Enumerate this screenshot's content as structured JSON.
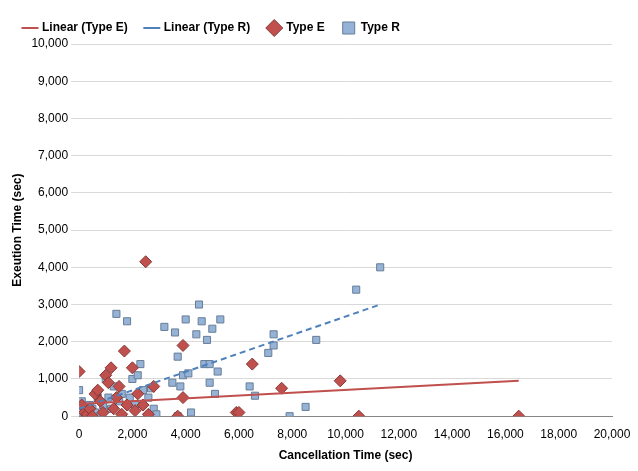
{
  "chart_data": {
    "type": "scatter",
    "x_label": "Cancellation Time (sec)",
    "y_label": "Exeution Time (sec)",
    "xlim": [
      0,
      20000
    ],
    "ylim": [
      0,
      10000
    ],
    "xticks": [
      0,
      {
        "value": 2000,
        "label": "2,000"
      },
      {
        "value": 4000,
        "label": "4,000"
      },
      {
        "value": 6000,
        "label": "6,000"
      },
      {
        "value": 8000,
        "label": "8,000"
      },
      {
        "value": 10000,
        "label": "10,000"
      },
      {
        "value": 12000,
        "label": "12,000"
      },
      {
        "value": 14000,
        "label": "14,000"
      },
      {
        "value": 16000,
        "label": "16,000"
      },
      {
        "value": 18000,
        "label": "18,000"
      },
      {
        "value": 20000,
        "label": "20,000"
      }
    ],
    "yticks": [
      0,
      {
        "value": 1000,
        "label": "1,000"
      },
      {
        "value": 2000,
        "label": "2,000"
      },
      {
        "value": 3000,
        "label": "3,000"
      },
      {
        "value": 4000,
        "label": "4,000"
      },
      {
        "value": 5000,
        "label": "5,000"
      },
      {
        "value": 6000,
        "label": "6,000"
      },
      {
        "value": 7000,
        "label": "7,000"
      },
      {
        "value": 8000,
        "label": "8,000"
      },
      {
        "value": 9000,
        "label": "9,000"
      },
      {
        "value": 10000,
        "label": "10,000"
      }
    ],
    "grid": "y",
    "legend": "top",
    "series": [
      {
        "name": "Type E",
        "type": "scatter",
        "marker": "diamond",
        "color": "#c0504d",
        "x": [
          0,
          100,
          200,
          300,
          400,
          500,
          600,
          700,
          800,
          900,
          1000,
          1100,
          1200,
          1300,
          1400,
          1500,
          1600,
          1700,
          1800,
          2000,
          2100,
          2200,
          2400,
          2500,
          2600,
          2800,
          3700,
          3900,
          3900,
          5900,
          6000,
          6500,
          7600,
          9800,
          10500,
          16500
        ],
        "values": [
          1200,
          300,
          100,
          50,
          200,
          0,
          600,
          700,
          400,
          100,
          1100,
          900,
          1300,
          200,
          500,
          800,
          50,
          1750,
          300,
          1300,
          150,
          600,
          300,
          4150,
          50,
          800,
          0,
          500,
          1900,
          100,
          100,
          1400,
          750,
          950,
          0,
          0
        ]
      },
      {
        "name": "Type R",
        "type": "scatter",
        "marker": "square",
        "color": "#95b3d7",
        "x": [
          0,
          50,
          100,
          200,
          300,
          400,
          500,
          600,
          700,
          800,
          900,
          1000,
          1100,
          1200,
          1300,
          1400,
          1500,
          1600,
          1800,
          1900,
          2000,
          2100,
          2200,
          2300,
          2400,
          2600,
          2700,
          2800,
          2900,
          3200,
          3500,
          3600,
          3700,
          3700,
          3800,
          3900,
          4000,
          4100,
          4200,
          4400,
          4500,
          4600,
          4700,
          4800,
          4900,
          4900,
          5000,
          5100,
          5200,
          5300,
          6400,
          6600,
          7100,
          7300,
          7300,
          7900,
          8500,
          8900,
          10400,
          11300
        ],
        "values": [
          700,
          100,
          400,
          200,
          0,
          300,
          200,
          100,
          500,
          0,
          300,
          1000,
          500,
          200,
          800,
          2750,
          400,
          600,
          2550,
          500,
          1000,
          300,
          1100,
          1400,
          700,
          500,
          750,
          200,
          50,
          2400,
          900,
          2250,
          1600,
          0,
          800,
          1100,
          2600,
          1150,
          100,
          2200,
          3000,
          2550,
          1400,
          2050,
          1400,
          900,
          2350,
          600,
          1200,
          2600,
          800,
          550,
          1700,
          1900,
          2200,
          0,
          250,
          2050,
          3400,
          4000
        ]
      },
      {
        "name": "Linear (Type E)",
        "type": "line",
        "line_style": "solid",
        "color": "#c0504d",
        "x": [
          0,
          16500
        ],
        "values": [
          330,
          950
        ]
      },
      {
        "name": "Linear (Type R)",
        "type": "line",
        "line_style": "dashed",
        "color": "#4f81bd",
        "x": [
          0,
          11300
        ],
        "values": [
          200,
          3000
        ]
      }
    ]
  }
}
